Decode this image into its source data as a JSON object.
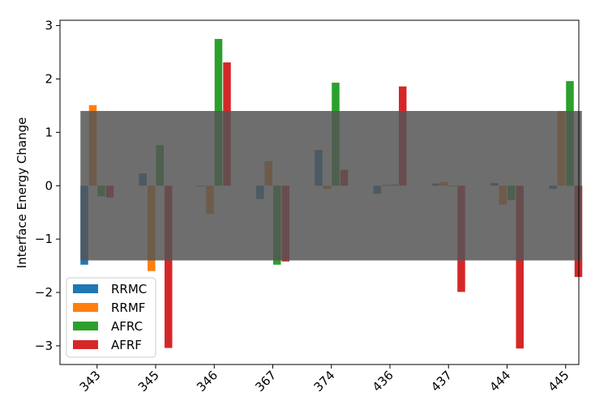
{
  "chart_data": {
    "type": "bar",
    "title": "",
    "xlabel": "",
    "ylabel": "Interface Energy Change",
    "categories": [
      "343",
      "345",
      "346",
      "367",
      "374",
      "436",
      "437",
      "444",
      "445"
    ],
    "series": [
      {
        "name": "RRMC",
        "color": "#1f77b4",
        "values": [
          -1.48,
          0.23,
          0.0,
          -0.25,
          0.67,
          -0.15,
          0.04,
          0.05,
          -0.06
        ]
      },
      {
        "name": "RRMF",
        "color": "#ff7f0e",
        "values": [
          1.51,
          -1.6,
          -0.53,
          0.46,
          -0.06,
          0.02,
          0.07,
          -0.35,
          1.4
        ]
      },
      {
        "name": "AFRC",
        "color": "#2ca02c",
        "values": [
          -0.2,
          0.76,
          2.75,
          -1.48,
          1.93,
          0.02,
          -0.01,
          -0.27,
          1.96
        ]
      },
      {
        "name": "AFRF",
        "color": "#d62728",
        "values": [
          -0.22,
          -3.04,
          2.31,
          -1.42,
          0.3,
          1.86,
          -1.99,
          -3.05,
          -1.71
        ]
      }
    ],
    "band": {
      "ymin": -1.4,
      "ymax": 1.4,
      "color": "#555555",
      "opacity": 0.85
    },
    "ylim": [
      -3.35,
      3.1
    ],
    "yticks": [
      "−3",
      "−2",
      "−1",
      "0",
      "1",
      "2",
      "3"
    ],
    "ytick_values": [
      -3,
      -2,
      -1,
      0,
      1,
      2,
      3
    ],
    "grid": false,
    "legend_position": "lower-left"
  }
}
